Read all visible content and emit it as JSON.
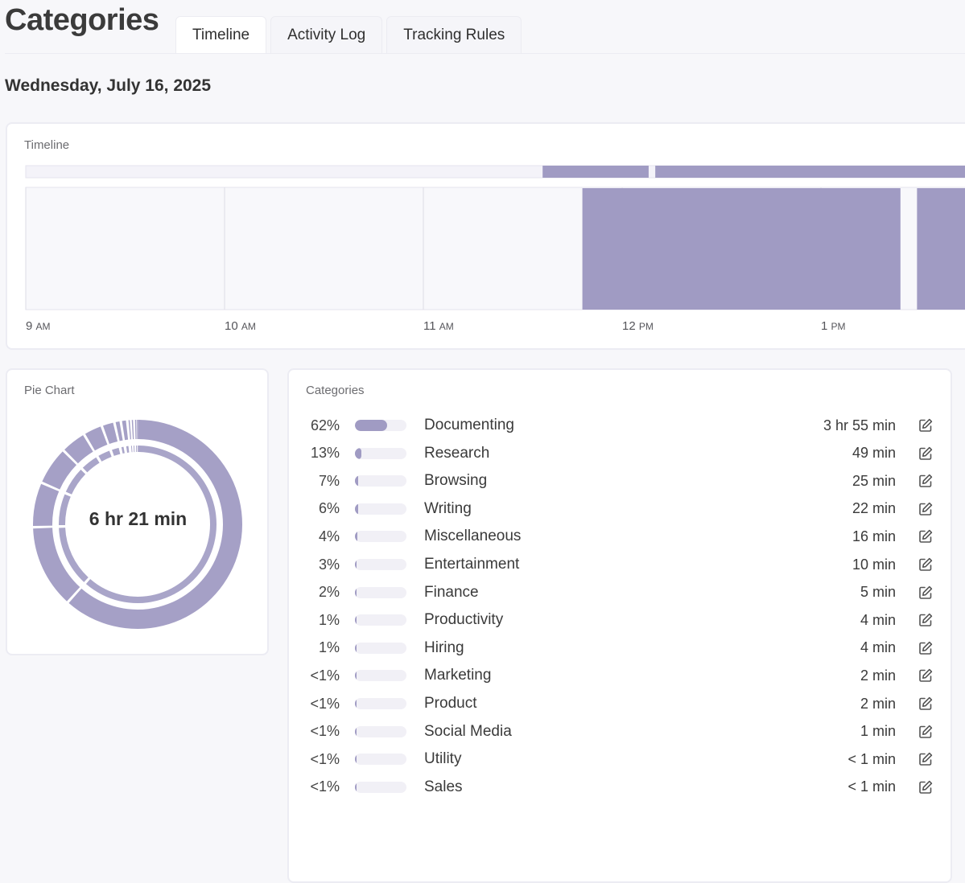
{
  "header": {
    "title": "Categories",
    "tabs": [
      {
        "label": "Timeline",
        "active": true
      },
      {
        "label": "Activity Log",
        "active": false
      },
      {
        "label": "Tracking Rules",
        "active": false
      }
    ]
  },
  "date": "Wednesday, July 16, 2025",
  "timeline": {
    "label": "Timeline",
    "ticks": [
      {
        "num": "9",
        "period": "AM"
      },
      {
        "num": "10",
        "period": "AM"
      },
      {
        "num": "11",
        "period": "AM"
      },
      {
        "num": "12",
        "period": "PM"
      },
      {
        "num": "1",
        "period": "PM"
      }
    ],
    "activity_blocks": [
      {
        "start": "11:48 AM",
        "end": "1:24 PM"
      },
      {
        "start": "1:29 PM",
        "end": "1:47 PM"
      }
    ],
    "overview_segments": [
      {
        "start": "11:36 AM",
        "end": "12:08 PM"
      },
      {
        "start": "12:10 PM",
        "end": "1:46 PM"
      }
    ],
    "accent_color": "#a09bc3"
  },
  "pie": {
    "label": "Pie Chart",
    "total": "6 hr 21 min",
    "color": "#a09bc3"
  },
  "categories": {
    "label": "Categories",
    "items": [
      {
        "pct": "62%",
        "name": "Documenting",
        "duration": "3 hr 55 min",
        "share": 0.62
      },
      {
        "pct": "13%",
        "name": "Research",
        "duration": "49 min",
        "share": 0.13
      },
      {
        "pct": "7%",
        "name": "Browsing",
        "duration": "25 min",
        "share": 0.07
      },
      {
        "pct": "6%",
        "name": "Writing",
        "duration": "22 min",
        "share": 0.06
      },
      {
        "pct": "4%",
        "name": "Miscellaneous",
        "duration": "16 min",
        "share": 0.04
      },
      {
        "pct": "3%",
        "name": "Entertainment",
        "duration": "10 min",
        "share": 0.03
      },
      {
        "pct": "2%",
        "name": "Finance",
        "duration": "5 min",
        "share": 0.02
      },
      {
        "pct": "1%",
        "name": "Productivity",
        "duration": "4 min",
        "share": 0.01
      },
      {
        "pct": "1%",
        "name": "Hiring",
        "duration": "4 min",
        "share": 0.01
      },
      {
        "pct": "<1%",
        "name": "Marketing",
        "duration": "2 min",
        "share": 0.005
      },
      {
        "pct": "<1%",
        "name": "Product",
        "duration": "2 min",
        "share": 0.005
      },
      {
        "pct": "<1%",
        "name": "Social Media",
        "duration": "1 min",
        "share": 0.003
      },
      {
        "pct": "<1%",
        "name": "Utility",
        "duration": "< 1 min",
        "share": 0.002
      },
      {
        "pct": "<1%",
        "name": "Sales",
        "duration": "< 1 min",
        "share": 0.001
      }
    ],
    "edit_icon": "edit-icon"
  }
}
